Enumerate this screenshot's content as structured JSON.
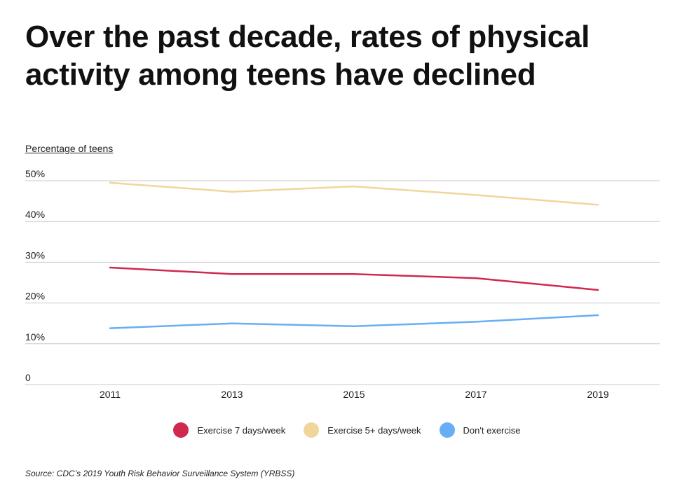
{
  "title": "Over the past decade, rates of physical activity among teens have declined",
  "source": "Source:  CDC’s 2019 Youth Risk Behavior Surveillance System (YRBSS)",
  "chart_data": {
    "type": "line",
    "title": "Over the past decade, rates of physical activity among teens have declined",
    "ylabel": "Percentage of teens",
    "xlabel": "",
    "categories": [
      "2011",
      "2013",
      "2015",
      "2017",
      "2019"
    ],
    "ylim": [
      0,
      50
    ],
    "yticks": [
      0,
      10,
      20,
      30,
      40,
      50
    ],
    "ytick_labels": [
      "0",
      "10%",
      "20%",
      "30%",
      "40%",
      "50%"
    ],
    "grid": true,
    "legend_position": "bottom",
    "series": [
      {
        "name": "Exercise 7 days/week",
        "color": "#d0294f",
        "values": [
          28.7,
          27.1,
          27.1,
          26.1,
          23.2
        ]
      },
      {
        "name": "Exercise 5+ days/week",
        "color": "#f0d69a",
        "values": [
          49.5,
          47.3,
          48.6,
          46.5,
          44.1
        ]
      },
      {
        "name": "Don't exercise",
        "color": "#68aef4",
        "values": [
          13.8,
          15.0,
          14.3,
          15.4,
          17.0
        ]
      }
    ]
  }
}
